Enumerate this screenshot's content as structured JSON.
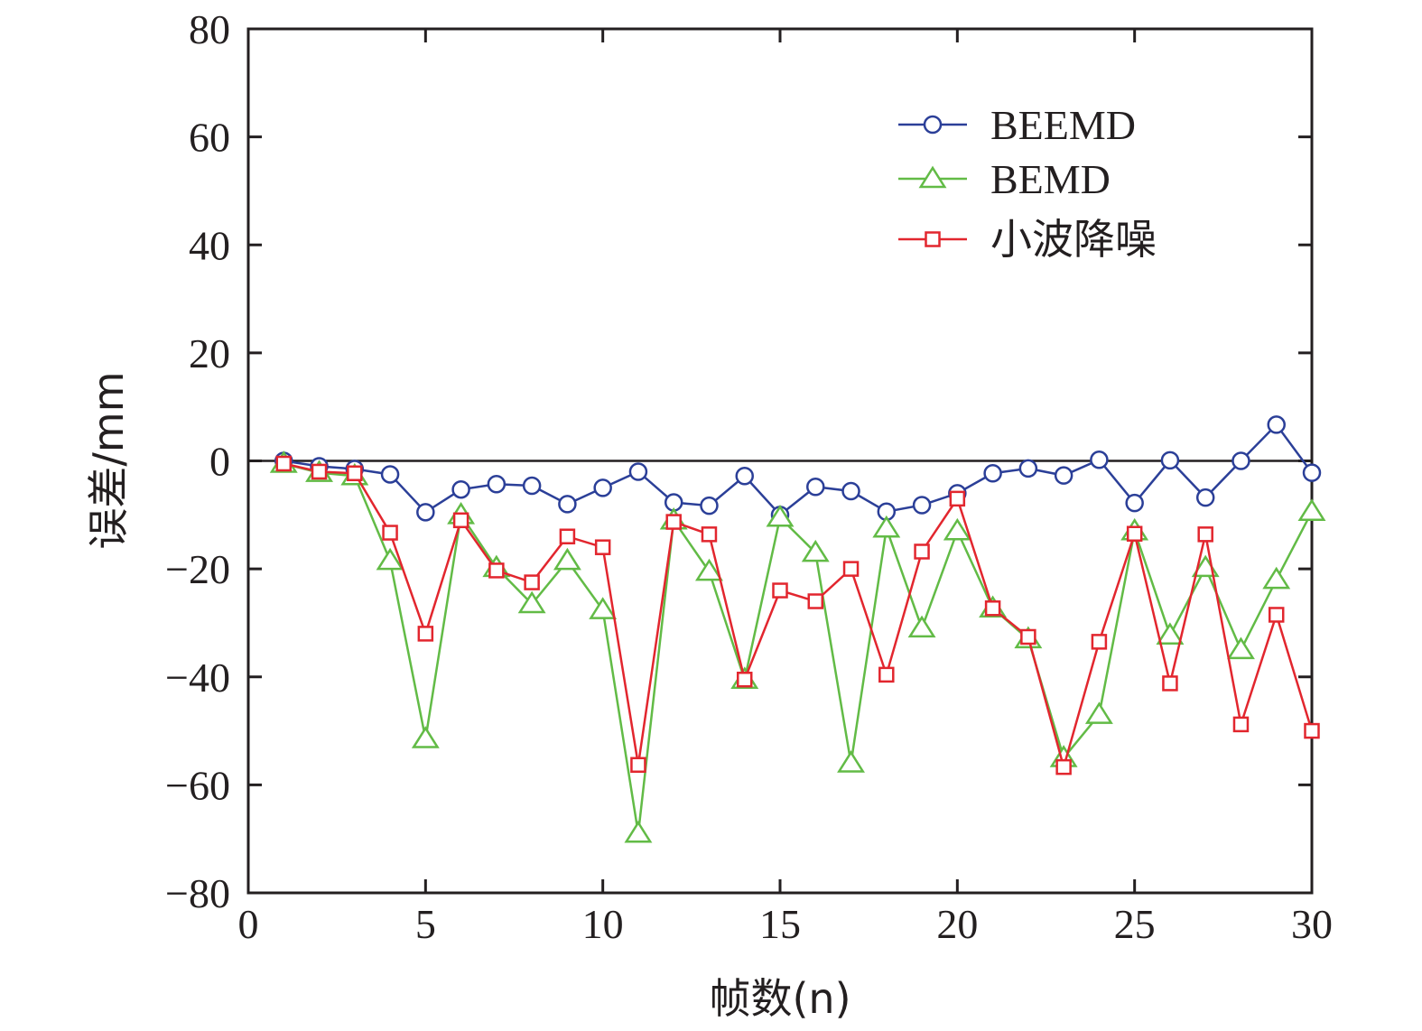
{
  "chart_data": {
    "type": "line",
    "title": "",
    "xlabel": "帧数(n)",
    "ylabel": "误差/mm",
    "xlim": [
      0,
      30
    ],
    "ylim": [
      -80,
      80
    ],
    "xticks": [
      0,
      5,
      10,
      15,
      20,
      25,
      30
    ],
    "yticks": [
      80,
      60,
      40,
      20,
      0,
      -20,
      -40,
      -60,
      -80
    ],
    "ytick_labels": [
      "80",
      "60",
      "40",
      "20",
      "0",
      "−20",
      "−40",
      "−60",
      "−80"
    ],
    "x": [
      1,
      2,
      3,
      4,
      5,
      6,
      7,
      8,
      9,
      10,
      11,
      12,
      13,
      14,
      15,
      16,
      17,
      18,
      19,
      20,
      21,
      22,
      23,
      24,
      25,
      26,
      27,
      28,
      29,
      30
    ],
    "reference_line_y": 0,
    "grid": false,
    "legend_position": "top-right",
    "series": [
      {
        "name": "BEEMD",
        "color": "#2b3f98",
        "marker": "circle",
        "values": [
          0,
          -1,
          -1.5,
          -2.5,
          -9.5,
          -5.3,
          -4.3,
          -4.6,
          -8,
          -5,
          -2,
          -7.7,
          -8.3,
          -2.8,
          -10,
          -4.8,
          -5.6,
          -9.4,
          -8.2,
          -6,
          -2.3,
          -1.4,
          -2.7,
          0.2,
          -7.8,
          0.1,
          -6.8,
          0,
          6.7,
          -2.2
        ]
      },
      {
        "name": "BEMD",
        "color": "#62bb46",
        "marker": "triangle",
        "values": [
          -0.5,
          -2.2,
          -2.8,
          -18.5,
          -51.5,
          -10,
          -19.8,
          -26.5,
          -18.5,
          -27.6,
          -69,
          -11,
          -20.5,
          -40.5,
          -10.5,
          -17,
          -56,
          -12.5,
          -31,
          -13,
          -27.3,
          -33,
          -55,
          -47,
          -13,
          -32.3,
          -19.8,
          -35,
          -22,
          -9.4
        ]
      },
      {
        "name": "小波降噪",
        "color": "#e2262e",
        "marker": "square",
        "values": [
          -0.5,
          -2,
          -2.3,
          -13.3,
          -32,
          -11,
          -20.3,
          -22.5,
          -14,
          -16,
          -56.3,
          -11.3,
          -13.6,
          -40.5,
          -24,
          -26,
          -20,
          -39.6,
          -16.8,
          -7,
          -27.3,
          -32.6,
          -56.7,
          -33.5,
          -13.5,
          -41.2,
          -13.6,
          -48.8,
          -28.5,
          -50
        ]
      }
    ]
  }
}
